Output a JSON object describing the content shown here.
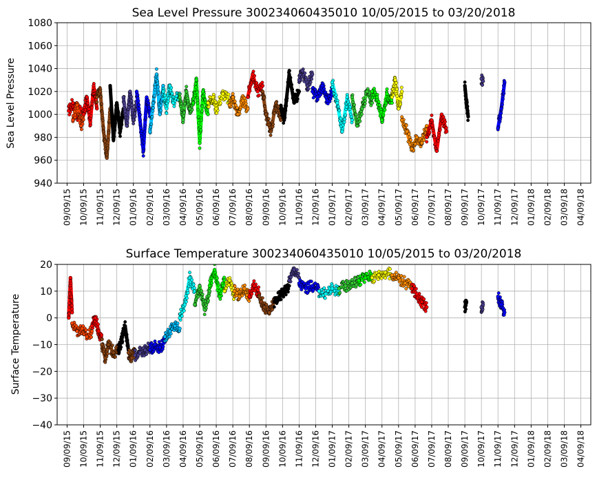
{
  "chart_data": [
    {
      "type": "scatter",
      "title": "Sea Level Pressure 300234060435010  10/05/2015 to 03/20/2018",
      "xlabel": "",
      "ylabel": "Sea Level Pressure",
      "ylim": [
        940,
        1080
      ],
      "yticks": [
        "940",
        "960",
        "980",
        "1000",
        "1020",
        "1040",
        "1060",
        "1080"
      ],
      "xticks": [
        "09/09/15",
        "10/09/15",
        "11/09/15",
        "12/09/15",
        "01/09/16",
        "02/09/16",
        "03/09/16",
        "04/09/16",
        "05/09/16",
        "06/09/16",
        "07/09/16",
        "08/09/16",
        "09/09/16",
        "10/09/16",
        "11/09/16",
        "12/09/16",
        "01/09/17",
        "02/09/17",
        "03/09/17",
        "04/09/17",
        "05/09/17",
        "06/09/17",
        "07/09/17",
        "08/09/17",
        "09/09/17",
        "10/09/17",
        "11/09/17",
        "12/09/17",
        "01/09/18",
        "02/09/18",
        "03/09/18",
        "04/09/18"
      ],
      "grid": true,
      "segments": [
        {
          "color": "#FF0000",
          "x": [
            0.1,
            0.35,
            0.6,
            0.85
          ],
          "y": [
            1003,
            1010,
            998,
            1005
          ]
        },
        {
          "color": "#FF4500",
          "x": [
            0.35,
            0.6,
            0.85,
            1.0
          ],
          "y": [
            995,
            1008,
            990,
            1000
          ]
        },
        {
          "color": "#FF0000",
          "x": [
            1.0,
            1.2,
            1.4,
            1.6,
            1.8
          ],
          "y": [
            1000,
            1015,
            993,
            1025,
            1005
          ]
        },
        {
          "color": "#8B4513",
          "x": [
            1.8,
            2.0,
            2.2,
            2.4,
            2.6
          ],
          "y": [
            1015,
            1020,
            985,
            962,
            1005
          ]
        },
        {
          "color": "#000000",
          "x": [
            2.6,
            2.8,
            3.0,
            3.2,
            3.4
          ],
          "y": [
            1025,
            978,
            1010,
            985,
            1005
          ]
        },
        {
          "color": "#483D8B",
          "x": [
            3.4,
            3.6,
            3.8,
            4.0,
            4.2
          ],
          "y": [
            1015,
            990,
            1020,
            995,
            1010
          ]
        },
        {
          "color": "#0000FF",
          "x": [
            4.2,
            4.4,
            4.6,
            4.8,
            5.0
          ],
          "y": [
            1020,
            995,
            968,
            1015,
            1000
          ]
        },
        {
          "color": "#00BFFF",
          "x": [
            5.0,
            5.2,
            5.4,
            5.6,
            5.8
          ],
          "y": [
            985,
            1010,
            1035,
            1000,
            1025
          ]
        },
        {
          "color": "#00FFFF",
          "x": [
            5.8,
            6.0,
            6.2,
            6.4,
            6.8
          ],
          "y": [
            1020,
            1005,
            1025,
            1010,
            1018
          ]
        },
        {
          "color": "#32CD32",
          "x": [
            6.8,
            7.0,
            7.2,
            7.4,
            7.6
          ],
          "y": [
            1015,
            995,
            1020,
            1005,
            1010
          ]
        },
        {
          "color": "#00FF00",
          "x": [
            7.6,
            7.8,
            8.0,
            8.2,
            8.5
          ],
          "y": [
            1010,
            1030,
            975,
            1020,
            1000
          ]
        },
        {
          "color": "#FFFF00",
          "x": [
            8.5,
            8.8,
            9.0,
            9.4,
            9.8
          ],
          "y": [
            1010,
            1015,
            1005,
            1018,
            1012
          ]
        },
        {
          "color": "#FF8C00",
          "x": [
            9.8,
            10.0,
            10.3,
            10.6,
            10.9
          ],
          "y": [
            1008,
            1015,
            1000,
            1012,
            1005
          ]
        },
        {
          "color": "#FF0000",
          "x": [
            10.9,
            11.2,
            11.5,
            11.8
          ],
          "y": [
            1015,
            1035,
            1020,
            1025
          ]
        },
        {
          "color": "#8B4513",
          "x": [
            11.8,
            12.0,
            12.3,
            12.6,
            12.9
          ],
          "y": [
            1020,
            1000,
            985,
            1010,
            995
          ]
        },
        {
          "color": "#000000",
          "x": [
            12.9,
            13.1,
            13.4,
            13.7,
            14.0
          ],
          "y": [
            1005,
            995,
            1035,
            1010,
            1020
          ]
        },
        {
          "color": "#483D8B",
          "x": [
            14.0,
            14.2,
            14.5,
            14.8
          ],
          "y": [
            1030,
            1038,
            1025,
            1035
          ]
        },
        {
          "color": "#0000FF",
          "x": [
            14.8,
            15.1,
            15.4,
            15.7,
            16.0
          ],
          "y": [
            1020,
            1015,
            1025,
            1012,
            1020
          ]
        },
        {
          "color": "#00FFFF",
          "x": [
            16.0,
            16.3,
            16.6,
            16.9,
            17.2
          ],
          "y": [
            1028,
            1010,
            985,
            1015,
            995
          ]
        },
        {
          "color": "#32CD32",
          "x": [
            17.2,
            17.5,
            17.8,
            18.1,
            18.4
          ],
          "y": [
            1015,
            990,
            1005,
            1020,
            1010
          ]
        },
        {
          "color": "#00FF00",
          "x": [
            18.4,
            18.7,
            19.0,
            19.3,
            19.6
          ],
          "y": [
            1020,
            1015,
            995,
            1018,
            1010
          ]
        },
        {
          "color": "#FFFF00",
          "x": [
            19.6,
            19.8,
            20.0,
            20.2
          ],
          "y": [
            1015,
            1030,
            1005,
            1020
          ]
        },
        {
          "color": "#FF8C00",
          "x": [
            20.2,
            20.5,
            20.8,
            21.1,
            21.4,
            21.7
          ],
          "y": [
            995,
            985,
            970,
            980,
            975,
            990
          ]
        },
        {
          "color": "#FF0000",
          "x": [
            21.7,
            22.0,
            22.3,
            22.6,
            22.9
          ],
          "y": [
            980,
            995,
            968,
            1000,
            985
          ]
        },
        {
          "color": "#000000",
          "x": [
            24.0,
            24.1,
            24.2
          ],
          "y": [
            1025,
            1010,
            998
          ]
        },
        {
          "color": "#483D8B",
          "x": [
            25.0,
            25.1
          ],
          "y": [
            1031,
            1029
          ]
        },
        {
          "color": "#0000FF",
          "x": [
            26.0,
            26.2,
            26.4
          ],
          "y": [
            988,
            1005,
            1028
          ]
        }
      ]
    },
    {
      "type": "scatter",
      "title": "Surface Temperature 300234060435010  10/05/2015 to 03/20/2018",
      "xlabel": "",
      "ylabel": "Surface Temperature",
      "ylim": [
        -40,
        20
      ],
      "yticks": [
        "−40",
        "−30",
        "−20",
        "−10",
        "0",
        "10",
        "20"
      ],
      "xticks": [
        "09/09/15",
        "10/09/15",
        "11/09/15",
        "12/09/15",
        "01/09/16",
        "02/09/16",
        "03/09/16",
        "04/09/16",
        "05/09/16",
        "06/09/16",
        "07/09/16",
        "08/09/16",
        "09/09/16",
        "10/09/16",
        "11/09/16",
        "12/09/16",
        "01/09/17",
        "02/09/17",
        "03/09/17",
        "04/09/17",
        "05/09/17",
        "06/09/17",
        "07/09/17",
        "08/09/17",
        "09/09/17",
        "10/09/17",
        "11/09/17",
        "12/09/17",
        "01/09/18",
        "02/09/18",
        "03/09/18",
        "04/09/18"
      ],
      "grid": true,
      "segments": [
        {
          "color": "#FF0000",
          "x": [
            0.1,
            0.2,
            0.3
          ],
          "y": [
            0,
            15,
            2
          ]
        },
        {
          "color": "#FF4500",
          "x": [
            0.3,
            0.6,
            0.9,
            1.2,
            1.5
          ],
          "y": [
            -2,
            -5,
            -4,
            -7,
            -5
          ]
        },
        {
          "color": "#FF0000",
          "x": [
            1.5,
            1.7,
            1.9,
            2.1
          ],
          "y": [
            -3,
            0,
            -5,
            -8
          ]
        },
        {
          "color": "#8B4513",
          "x": [
            2.1,
            2.3,
            2.5,
            2.8,
            3.1
          ],
          "y": [
            -10,
            -15,
            -10,
            -13,
            -12
          ]
        },
        {
          "color": "#000000",
          "x": [
            3.1,
            3.3,
            3.5,
            3.7
          ],
          "y": [
            -12,
            -8,
            -3,
            -12
          ]
        },
        {
          "color": "#8B4513",
          "x": [
            3.7,
            3.9,
            4.1
          ],
          "y": [
            -13,
            -15,
            -12
          ]
        },
        {
          "color": "#483D8B",
          "x": [
            4.1,
            4.4,
            4.7,
            5.0
          ],
          "y": [
            -14,
            -13,
            -12,
            -11
          ]
        },
        {
          "color": "#0000FF",
          "x": [
            5.0,
            5.3,
            5.6,
            5.9
          ],
          "y": [
            -12,
            -10,
            -11,
            -9
          ]
        },
        {
          "color": "#00BFFF",
          "x": [
            5.9,
            6.2,
            6.5,
            6.8
          ],
          "y": [
            -7,
            -5,
            -3,
            -4
          ]
        },
        {
          "color": "#00FFFF",
          "x": [
            6.8,
            7.1,
            7.4,
            7.7
          ],
          "y": [
            0,
            5,
            15,
            10
          ]
        },
        {
          "color": "#32CD32",
          "x": [
            7.7,
            8.0,
            8.3,
            8.6
          ],
          "y": [
            5,
            12,
            3,
            10
          ]
        },
        {
          "color": "#00FF00",
          "x": [
            8.6,
            8.9,
            9.2,
            9.5
          ],
          "y": [
            12,
            18,
            8,
            14
          ]
        },
        {
          "color": "#FFFF00",
          "x": [
            9.5,
            9.8,
            10.1
          ],
          "y": [
            10,
            14,
            8
          ]
        },
        {
          "color": "#FF8C00",
          "x": [
            10.1,
            10.4,
            10.7,
            11.0
          ],
          "y": [
            10,
            8,
            11,
            8
          ]
        },
        {
          "color": "#FF0000",
          "x": [
            11.0,
            11.3,
            11.6
          ],
          "y": [
            8,
            12,
            9
          ]
        },
        {
          "color": "#8B4513",
          "x": [
            11.6,
            11.9,
            12.2,
            12.5
          ],
          "y": [
            8,
            4,
            2,
            6
          ]
        },
        {
          "color": "#000000",
          "x": [
            12.5,
            12.8,
            13.1,
            13.4
          ],
          "y": [
            6,
            8,
            10,
            12
          ]
        },
        {
          "color": "#483D8B",
          "x": [
            13.4,
            13.7,
            14.0
          ],
          "y": [
            14,
            18,
            15
          ]
        },
        {
          "color": "#0000FF",
          "x": [
            14.0,
            14.4,
            14.8,
            15.2
          ],
          "y": [
            13,
            11,
            12,
            10
          ]
        },
        {
          "color": "#00FFFF",
          "x": [
            15.2,
            15.6,
            16.0,
            16.4
          ],
          "y": [
            10,
            9,
            11,
            10
          ]
        },
        {
          "color": "#32CD32",
          "x": [
            16.4,
            16.8,
            17.2,
            17.6
          ],
          "y": [
            11,
            12,
            13,
            14
          ]
        },
        {
          "color": "#00FF00",
          "x": [
            17.6,
            18.0,
            18.4
          ],
          "y": [
            14,
            15,
            16
          ]
        },
        {
          "color": "#FFFF00",
          "x": [
            18.4,
            18.8,
            19.2,
            19.6
          ],
          "y": [
            15,
            16,
            17,
            16
          ]
        },
        {
          "color": "#FF8C00",
          "x": [
            19.6,
            20.0,
            20.4,
            20.8
          ],
          "y": [
            16,
            15,
            13,
            12
          ]
        },
        {
          "color": "#FF0000",
          "x": [
            20.8,
            21.1,
            21.4,
            21.7
          ],
          "y": [
            11,
            9,
            6,
            4
          ]
        },
        {
          "color": "#000000",
          "x": [
            24.0,
            24.1
          ],
          "y": [
            4,
            6
          ]
        },
        {
          "color": "#483D8B",
          "x": [
            25.0,
            25.1
          ],
          "y": [
            4,
            5
          ]
        },
        {
          "color": "#0000FF",
          "x": [
            26.0,
            26.2,
            26.4
          ],
          "y": [
            8,
            5,
            2
          ]
        }
      ]
    }
  ]
}
